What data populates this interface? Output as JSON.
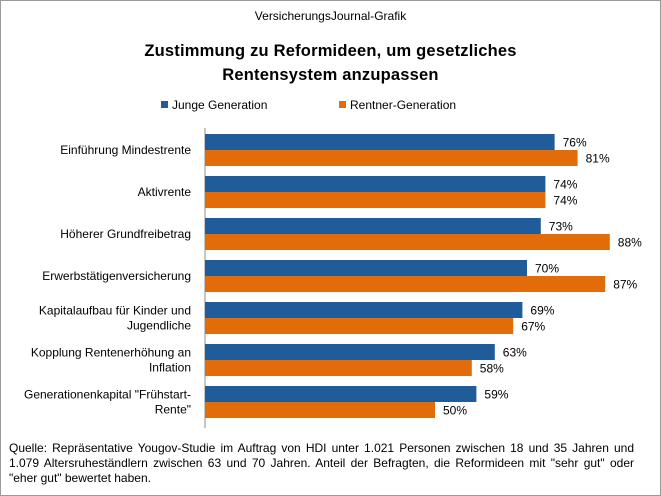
{
  "header": {
    "source_label": "VersicherungsJournal-Grafik"
  },
  "chart_data": {
    "type": "bar",
    "orientation": "horizontal",
    "title": "Zustimmung zu Reformideen, um gesetzliches Rentensystem anzupassen",
    "title_lines": [
      "Zustimmung zu Reformideen, um gesetzliches",
      "Rentensystem anzupassen"
    ],
    "categories": [
      "Einführung Mindestrente",
      "Aktivrente",
      "Höherer Grundfreibetrag",
      "Erwerbstätigenversicherung",
      "Kapitalaufbau für Kinder und Jugendliche",
      "Kopplung Rentenerhöhung an Inflation",
      "Generationenkapital \"Frühstart-Rente\""
    ],
    "category_lines": [
      [
        "Einführung Mindestrente"
      ],
      [
        "Aktivrente"
      ],
      [
        "Höherer Grundfreibetrag"
      ],
      [
        "Erwerbstätigenversicherung"
      ],
      [
        "Kapitalaufbau für Kinder und",
        "Jugendliche"
      ],
      [
        "Kopplung Rentenerhöhung an",
        "Inflation"
      ],
      [
        "Generationenkapital \"Frühstart-",
        "Rente\""
      ]
    ],
    "series": [
      {
        "name": "Junge Generation",
        "color": "#1F5C99",
        "values": [
          76,
          74,
          73,
          70,
          69,
          63,
          59
        ]
      },
      {
        "name": "Rentner-Generation",
        "color": "#E36C0A",
        "values": [
          81,
          74,
          88,
          87,
          67,
          58,
          50
        ]
      }
    ],
    "value_suffix": "%",
    "xlim": [
      0,
      100
    ],
    "grid": false,
    "legend_position": "top"
  },
  "footnote": {
    "text": "Quelle: Repräsentative Yougov-Studie im Auftrag von HDI unter 1.021 Personen zwischen 18 und 35 Jahren und 1.079 Altersruheständlern zwischen 63 und 70 Jahren. Anteil der Befragten, die Reformideen mit \"sehr gut\" oder \"eher gut\" bewertet haben."
  }
}
